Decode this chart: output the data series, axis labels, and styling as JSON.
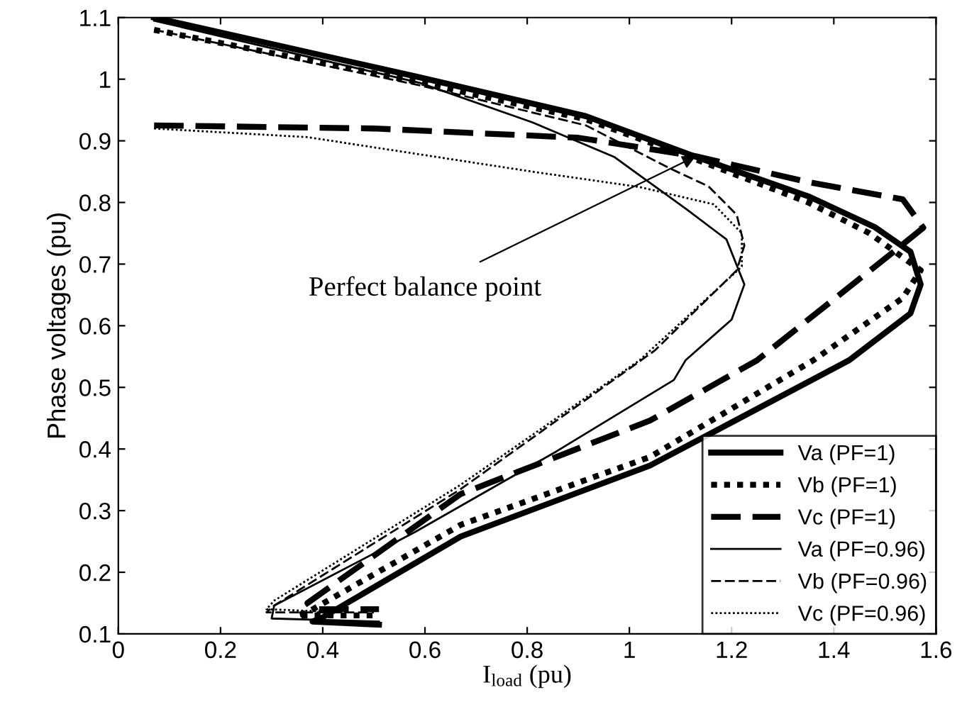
{
  "chart_data": {
    "type": "line",
    "xlabel": "I$_{load}$ (pu)",
    "ylabel": "Phase voltages (pu)",
    "xlim": [
      0,
      1.6
    ],
    "ylim": [
      0.1,
      1.1
    ],
    "xticks": [
      0,
      0.2,
      0.4,
      0.6,
      0.8,
      1,
      1.2,
      1.4,
      1.6
    ],
    "yticks": [
      0.1,
      0.2,
      0.3,
      0.4,
      0.5,
      0.6,
      0.7,
      0.8,
      0.9,
      1,
      1.1
    ],
    "grid": false,
    "legend": "bottom right",
    "marker": "none",
    "annotations": [
      {
        "text": "Perfect balance point",
        "x": 1.13,
        "y": 0.875
      }
    ],
    "series": [
      {
        "name": "Va (PF=1)",
        "color": "#000000",
        "line_style": "solid",
        "x": [
          0.07,
          0.59,
          0.915,
          1.13,
          1.35,
          1.48,
          1.55,
          1.57,
          1.55,
          1.43,
          1.04,
          0.67,
          0.4,
          0.38,
          0.51
        ],
        "values": [
          1.1,
          1.003,
          0.94,
          0.874,
          0.81,
          0.76,
          0.72,
          0.667,
          0.62,
          0.544,
          0.373,
          0.258,
          0.127,
          0.12,
          0.115
        ]
      },
      {
        "name": "Vb (PF=1)",
        "color": "#000000",
        "line_style": "dotted",
        "x": [
          0.07,
          0.59,
          0.915,
          1.13,
          1.35,
          1.47,
          1.57,
          1.535,
          1.36,
          1.04,
          0.67,
          0.37,
          0.35,
          0.51
        ],
        "values": [
          1.08,
          0.995,
          0.935,
          0.87,
          0.8,
          0.75,
          0.69,
          0.645,
          0.544,
          0.387,
          0.277,
          0.135,
          0.13,
          0.13
        ]
      },
      {
        "name": "Vc (PF=1)",
        "color": "#000000",
        "line_style": "dashed",
        "x": [
          0.07,
          0.5,
          0.9,
          1.13,
          1.35,
          1.535,
          1.575,
          1.52,
          1.25,
          1.04,
          0.67,
          0.37,
          0.38,
          0.51
        ],
        "values": [
          0.925,
          0.92,
          0.905,
          0.875,
          0.833,
          0.805,
          0.759,
          0.722,
          0.544,
          0.446,
          0.327,
          0.15,
          0.14,
          0.14
        ]
      },
      {
        "name": "Va (PF=0.96)",
        "color": "#000000",
        "line_style": "solid",
        "x": [
          0.07,
          0.59,
          0.81,
          0.97,
          1.11,
          1.19,
          1.225,
          1.2,
          1.11,
          1.087,
          0.857,
          0.58,
          0.305,
          0.3,
          0.51
        ],
        "values": [
          1.095,
          0.994,
          0.93,
          0.874,
          0.79,
          0.74,
          0.667,
          0.61,
          0.544,
          0.512,
          0.396,
          0.265,
          0.146,
          0.125,
          0.12
        ]
      },
      {
        "name": "Vb (PF=0.96)",
        "color": "#000000",
        "line_style": "dashed",
        "x": [
          0.07,
          0.59,
          0.915,
          1.08,
          1.155,
          1.21,
          1.225,
          1.21,
          1.05,
          0.67,
          0.305,
          0.29,
          0.5
        ],
        "values": [
          1.08,
          0.99,
          0.925,
          0.855,
          0.826,
          0.78,
          0.73,
          0.69,
          0.56,
          0.335,
          0.146,
          0.135,
          0.135
        ]
      },
      {
        "name": "Vc (PF=0.96)",
        "color": "#000000",
        "line_style": "dotted",
        "x": [
          0.07,
          0.37,
          0.81,
          1.02,
          1.165,
          1.22,
          1.22,
          1.02,
          0.67,
          0.305,
          0.29,
          0.45
        ],
        "values": [
          0.92,
          0.906,
          0.85,
          0.825,
          0.797,
          0.75,
          0.696,
          0.544,
          0.342,
          0.154,
          0.14,
          0.135
        ]
      }
    ]
  }
}
